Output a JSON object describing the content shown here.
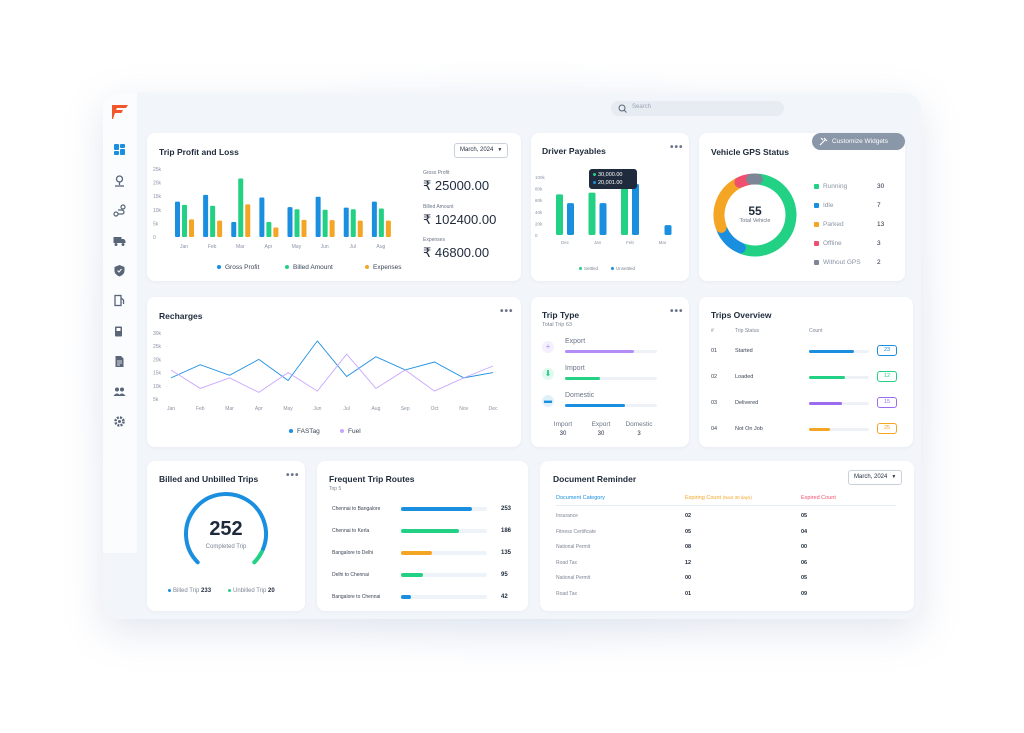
{
  "search": {
    "placeholder": "Search"
  },
  "customize_label": "Customize Widgets",
  "sidebar": {
    "icons": [
      "dashboard-icon",
      "location-icon",
      "route-icon",
      "truck-icon",
      "shield-icon",
      "fuel-pump-icon",
      "fuel-icon",
      "document-icon",
      "users-icon",
      "settings-icon"
    ]
  },
  "trip_profit_loss": {
    "title": "Trip Profit and Loss",
    "month": "March, 2024",
    "stats": [
      {
        "label": "Gross Profit",
        "value": "₹ 25000.00"
      },
      {
        "label": "Billed Amount",
        "value": "₹ 102400.00"
      },
      {
        "label": "Expenses",
        "value": "₹ 46800.00"
      }
    ],
    "chart_data": {
      "type": "bar",
      "categories": [
        "Jan",
        "Feb",
        "Mar",
        "Apr",
        "May",
        "Jun",
        "Jul",
        "Aug"
      ],
      "y_ticks": [
        "25k",
        "20k",
        "15k",
        "10k",
        "5k",
        "0"
      ],
      "ylim": [
        0,
        25000
      ],
      "series": [
        {
          "name": "Gross Profit",
          "color": "#1a8fe0",
          "values": [
            13000,
            15500,
            5500,
            14500,
            11000,
            14800,
            10800,
            13000
          ]
        },
        {
          "name": "Billed Amount",
          "color": "#22d184",
          "values": [
            11800,
            11500,
            21500,
            5500,
            10200,
            10000,
            10200,
            10500
          ]
        },
        {
          "name": "Expenses",
          "color": "#f5a524",
          "values": [
            6500,
            6000,
            12000,
            3500,
            6300,
            6200,
            6000,
            6000
          ]
        }
      ]
    }
  },
  "driver_payables": {
    "title": "Driver Payables",
    "tooltip": [
      "30,000.00",
      "20,001.00"
    ],
    "legend": [
      "Settled",
      "Unsettled"
    ],
    "chart_data": {
      "type": "bar",
      "categories": [
        "Dec",
        "Jan",
        "Feb",
        "Mar"
      ],
      "y_ticks": [
        "100k",
        "80k",
        "60k",
        "40k",
        "20k",
        "0"
      ],
      "ylim": [
        0,
        100000
      ],
      "series": [
        {
          "name": "Settled",
          "color": "#22d184",
          "values": [
            70000,
            73000,
            87000,
            0
          ]
        },
        {
          "name": "Unsettled",
          "color": "#1a8fe0",
          "values": [
            55000,
            55000,
            88000,
            17000
          ]
        }
      ]
    }
  },
  "vehicle_gps": {
    "title": "Vehicle GPS Status",
    "total": "55",
    "total_label": "Total Vehicle",
    "statuses": [
      {
        "label": "Running",
        "value": "30",
        "color": "#22d184"
      },
      {
        "label": "Idle",
        "value": "7",
        "color": "#1a8fe0"
      },
      {
        "label": "Parked",
        "value": "13",
        "color": "#f5a524"
      },
      {
        "label": "Offline",
        "value": "3",
        "color": "#f0506e"
      },
      {
        "label": "Without GPS",
        "value": "2",
        "color": "#7d8696"
      }
    ]
  },
  "recharges": {
    "title": "Recharges",
    "chart_data": {
      "type": "line",
      "categories": [
        "Jan",
        "Feb",
        "Mar",
        "Apr",
        "May",
        "Jun",
        "Jul",
        "Aug",
        "Sep",
        "Oct",
        "Nov",
        "Dec"
      ],
      "y_ticks": [
        "30k",
        "25k",
        "20k",
        "15k",
        "10k",
        "5k"
      ],
      "ylim": [
        5000,
        30000
      ],
      "series": [
        {
          "name": "FASTag",
          "color": "#1a8fe0",
          "values": [
            13000,
            18000,
            14000,
            20000,
            12000,
            27000,
            13500,
            21000,
            16000,
            19000,
            13000,
            15000
          ]
        },
        {
          "name": "Fuel",
          "color": "#c9a6ff",
          "values": [
            16000,
            9000,
            13000,
            7500,
            15000,
            8000,
            22000,
            9000,
            16000,
            8000,
            13000,
            17500
          ]
        }
      ]
    }
  },
  "trip_type": {
    "title": "Trip Type",
    "subtitle": "Total Trip 63",
    "rows": [
      {
        "label": "Export",
        "pct": 0.75,
        "color": "#b48cf7",
        "icon": "plus-icon"
      },
      {
        "label": "Import",
        "pct": 0.38,
        "color": "#22d184",
        "icon": "import-icon"
      },
      {
        "label": "Domestic",
        "pct": 0.65,
        "color": "#1a8fe0",
        "icon": "truck-icon"
      }
    ],
    "totals": [
      {
        "label": "Import",
        "value": "30"
      },
      {
        "label": "Export",
        "value": "30"
      },
      {
        "label": "Domestic",
        "value": "3"
      }
    ]
  },
  "trips_overview": {
    "title": "Trips Overview",
    "headers": [
      "#",
      "Trip Status",
      "Count"
    ],
    "rows": [
      {
        "num": "01",
        "status": "Started",
        "count": "23",
        "pct": 0.75,
        "color": "#1a8fe0"
      },
      {
        "num": "02",
        "status": "Loaded",
        "count": "12",
        "pct": 0.6,
        "color": "#22d184"
      },
      {
        "num": "03",
        "status": "Delivered",
        "count": "15",
        "pct": 0.55,
        "color": "#9b6cf0"
      },
      {
        "num": "04",
        "status": "Not On Job",
        "count": "25",
        "pct": 0.35,
        "color": "#f5a524"
      }
    ]
  },
  "billed_unbilled": {
    "title": "Billed and Unbilled Trips",
    "total": "252",
    "total_label": "Completed Trip",
    "billed_label": "Billed Trip",
    "billed_value": "233",
    "unbilled_label": "Unbilled Trip",
    "unbilled_value": "20",
    "billed_fraction": 0.92
  },
  "frequent_routes": {
    "title": "Frequent Trip Routes",
    "subtitle": "Top 5",
    "rows": [
      {
        "route": "Chennai to Bangalore",
        "value": "253",
        "pct": 0.82,
        "color": "#1a8fe0"
      },
      {
        "route": "Chennai to Kerla",
        "value": "186",
        "pct": 0.68,
        "color": "#22d184"
      },
      {
        "route": "Bangalore to Delhi",
        "value": "135",
        "pct": 0.36,
        "color": "#f5a524"
      },
      {
        "route": "Delhi to Chennai",
        "value": "95",
        "pct": 0.25,
        "color": "#22d184"
      },
      {
        "route": "Bangalore to Chennai",
        "value": "42",
        "pct": 0.12,
        "color": "#1a8fe0"
      }
    ]
  },
  "document_reminder": {
    "title": "Document Reminder",
    "month": "March, 2024",
    "headers": {
      "category": "Document Category",
      "expiring": "Expiring Count",
      "expiring_note": "(Next 30 days)",
      "expired": "Expired Count"
    },
    "rows": [
      {
        "category": "Insurance",
        "expiring": "02",
        "expired": "05"
      },
      {
        "category": "Fitness Certificate",
        "expiring": "05",
        "expired": "04"
      },
      {
        "category": "National Permit",
        "expiring": "08",
        "expired": "00"
      },
      {
        "category": "Road Tax",
        "expiring": "12",
        "expired": "06"
      },
      {
        "category": "National Permit",
        "expiring": "00",
        "expired": "05"
      },
      {
        "category": "Road Tax",
        "expiring": "01",
        "expired": "09"
      }
    ]
  }
}
